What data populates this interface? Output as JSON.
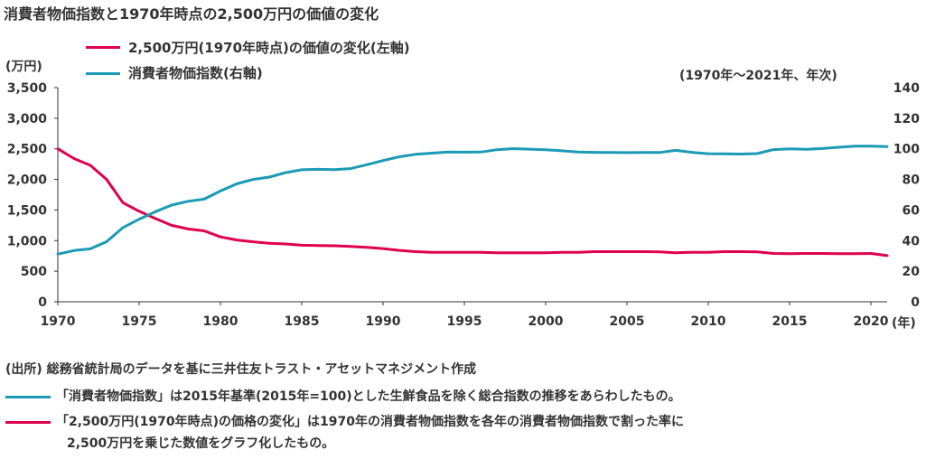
{
  "title": "消費者物価指数と1970年時点の2,500万円の価値の変化",
  "legend": [
    {
      "label": "2,500万円(1970年時点)の価値の変化(左軸)",
      "color": "#e0004d"
    },
    {
      "label": "消費者物価指数(右軸)",
      "color": "#1b9ab5"
    }
  ],
  "left_unit": "(万円)",
  "right_unit": "(年)",
  "period_note": "(1970年～2021年、年次)",
  "source": "(出所) 総務省統計局のデータを基に三井住友トラスト・アセットマネジメント作成",
  "notes": [
    {
      "color": "#1b9ab5",
      "text": "「消費者物価指数」は2015年基準(2015年=100)とした生鮮食品を除く総合指数の推移をあらわしたもの。"
    },
    {
      "color": "#e0004d",
      "text": "「2,500万円(1970年時点)の価格の変化」は1970年の消費者物価指数を各年の消費者物価指数で割った率に"
    },
    {
      "color": "",
      "text": "2,500万円を乗じた数値をグラフ化したもの。"
    }
  ],
  "chart_data": {
    "type": "line",
    "x": [
      1970,
      1971,
      1972,
      1973,
      1974,
      1975,
      1976,
      1977,
      1978,
      1979,
      1980,
      1981,
      1982,
      1983,
      1984,
      1985,
      1986,
      1987,
      1988,
      1989,
      1990,
      1991,
      1992,
      1993,
      1994,
      1995,
      1996,
      1997,
      1998,
      1999,
      2000,
      2001,
      2002,
      2003,
      2004,
      2005,
      2006,
      2007,
      2008,
      2009,
      2010,
      2011,
      2012,
      2013,
      2014,
      2015,
      2016,
      2017,
      2018,
      2019,
      2020,
      2021
    ],
    "xlim": [
      1970,
      2021
    ],
    "x_ticks": [
      "1970",
      "1975",
      "1980",
      "1985",
      "1990",
      "1995",
      "2000",
      "2005",
      "2010",
      "2015",
      "2020"
    ],
    "x_tick_values": [
      1970,
      1975,
      1980,
      1985,
      1990,
      1995,
      2000,
      2005,
      2010,
      2015,
      2020
    ],
    "left_axis": {
      "ylim": [
        0,
        3500
      ],
      "ticks": [
        "0",
        "500",
        "1,000",
        "1,500",
        "2,000",
        "2,500",
        "3,000",
        "3,500"
      ],
      "tick_values": [
        0,
        500,
        1000,
        1500,
        2000,
        2500,
        3000,
        3500
      ]
    },
    "right_axis": {
      "ylim": [
        0,
        140
      ],
      "ticks": [
        "0",
        "20",
        "40",
        "60",
        "80",
        "100",
        "120",
        "140"
      ],
      "tick_values": [
        0,
        20,
        40,
        60,
        80,
        100,
        120,
        140
      ]
    },
    "series": [
      {
        "name": "2,500万円(1970年時点)の価値の変化(左軸)",
        "axis": "left",
        "color": "#e0004d",
        "values": [
          2500,
          2340,
          2230,
          2000,
          1620,
          1480,
          1360,
          1250,
          1190,
          1160,
          1060,
          1010,
          980,
          955,
          945,
          925,
          920,
          915,
          905,
          890,
          870,
          840,
          820,
          810,
          810,
          810,
          810,
          800,
          800,
          800,
          800,
          810,
          810,
          820,
          820,
          820,
          820,
          815,
          800,
          810,
          810,
          820,
          820,
          815,
          790,
          785,
          790,
          790,
          785,
          785,
          790,
          755
        ]
      },
      {
        "name": "消費者物価指数(右軸)",
        "axis": "right",
        "color": "#1b9ab5",
        "values": [
          31.2,
          33.5,
          34.6,
          39.3,
          48.5,
          54.0,
          58.9,
          63.2,
          65.7,
          67.1,
          72.4,
          77.1,
          80.0,
          81.5,
          84.4,
          86.3,
          86.6,
          86.4,
          87.1,
          89.6,
          92.3,
          94.8,
          96.4,
          97.2,
          97.9,
          97.8,
          97.9,
          99.4,
          100.1,
          99.8,
          99.4,
          98.7,
          97.9,
          97.7,
          97.6,
          97.5,
          97.6,
          97.6,
          99.0,
          97.7,
          96.8,
          96.7,
          96.6,
          96.9,
          99.5,
          100.0,
          99.7,
          100.2,
          101.0,
          101.7,
          101.7,
          101.5
        ]
      }
    ]
  }
}
